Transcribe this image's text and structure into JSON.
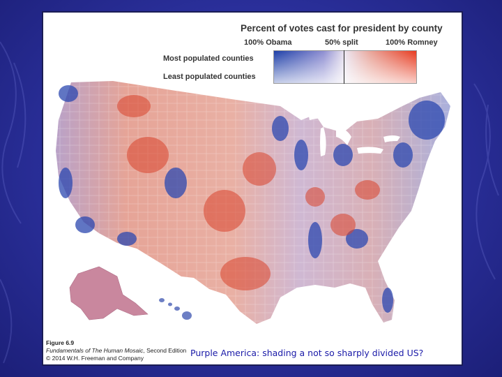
{
  "legend": {
    "title": "Percent of votes cast for president by county",
    "left_label": "100% Obama",
    "mid_label": "50% split",
    "right_label": "100% Romney",
    "top_row_label": "Most populated counties",
    "bottom_row_label": "Least populated counties"
  },
  "figure_caption": {
    "number": "Figure 6.9",
    "source_title": "Fundamentals of The Human Mosaic",
    "source_edition": ", Second Edition",
    "copyright": "© 2014 W.H. Freeman and Company"
  },
  "slide_caption": "Purple America: shading a not so sharply divided US?",
  "colors": {
    "obama": "#1d3fa8",
    "split": "#ebe4ef",
    "romney": "#e83a1f",
    "slide_background": "#2a2f9a",
    "caption_text": "#1a1aa8"
  }
}
